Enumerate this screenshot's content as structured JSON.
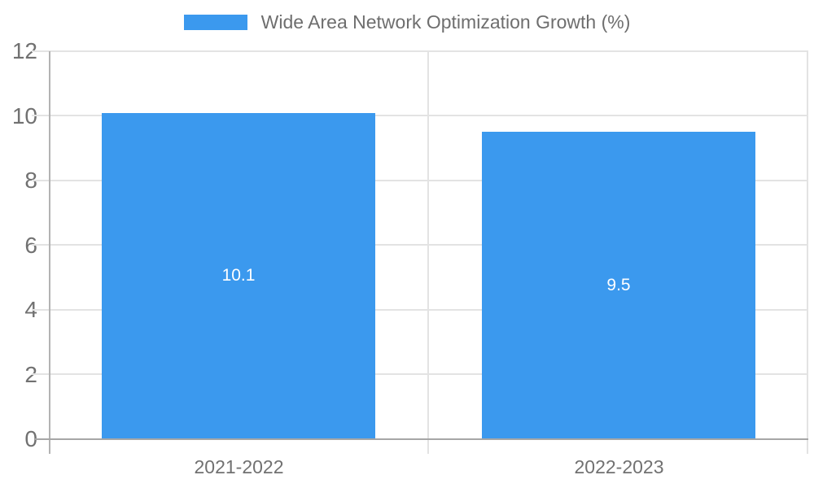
{
  "chart_data": {
    "type": "bar",
    "title": "Wide Area Network Optimization Growth (%)",
    "categories": [
      "2021-2022",
      "2022-2023"
    ],
    "values": [
      10.1,
      9.5
    ],
    "value_labels": [
      "10.1",
      "9.5"
    ],
    "ylim": [
      0,
      12
    ],
    "yticks": [
      0,
      2,
      4,
      6,
      8,
      10,
      12
    ],
    "xlabel": "",
    "ylabel": "",
    "grid": true,
    "legend_position": "top-center",
    "bar_color": "#3B99EE",
    "value_label_color": "#ffffff",
    "axis_text_color": "#717171",
    "gridline_color": "#e3e3e3"
  },
  "legend": {
    "label": "Wide Area Network Optimization Growth (%)",
    "swatch_color": "#3B99EE"
  }
}
